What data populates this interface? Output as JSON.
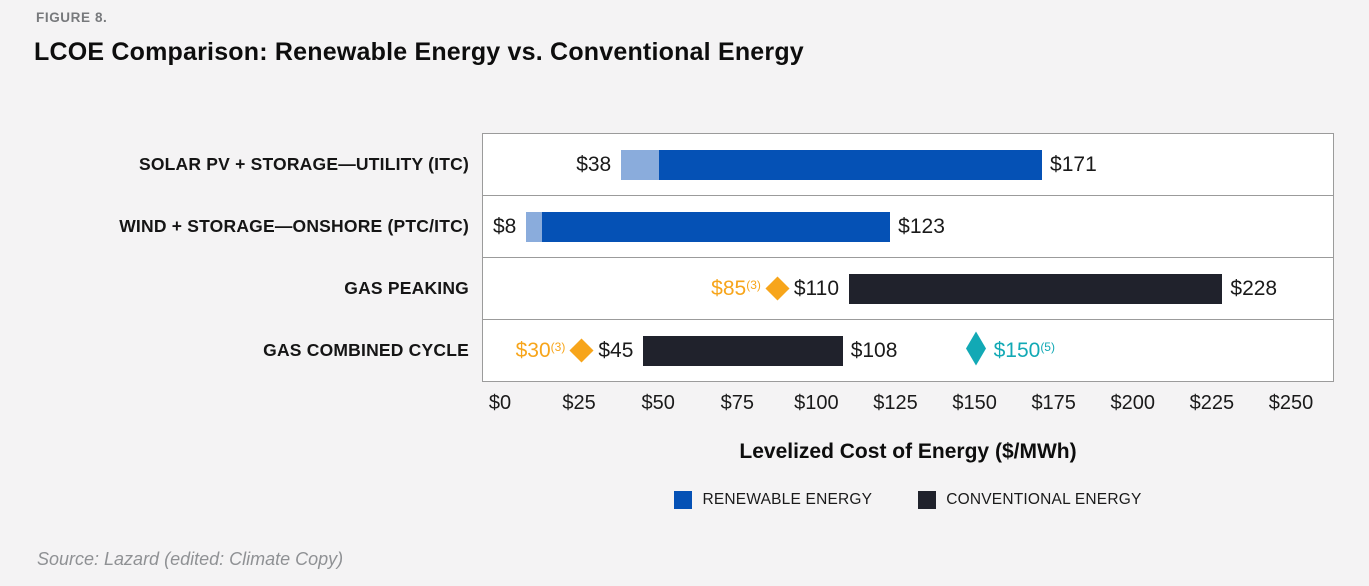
{
  "header": {
    "figure_label": "FIGURE 8.",
    "title": "LCOE Comparison: Renewable Energy vs. Conventional Energy"
  },
  "footer": {
    "source": "Source: Lazard (edited: Climate Copy)"
  },
  "colors": {
    "renewable": "#0551B5",
    "renewable_light": "#8AACDC",
    "conventional": "#20222C",
    "gold": "#F7A51B",
    "teal": "#12A9B5",
    "page_bg": "#F4F3F4"
  },
  "chart_data": {
    "type": "bar",
    "orientation": "horizontal",
    "xlabel": "Levelized Cost of Energy ($/MWh)",
    "xlim": [
      0,
      250
    ],
    "grid": false,
    "legend_position": "bottom",
    "x_ticks": [
      {
        "value": 0,
        "label": "$0"
      },
      {
        "value": 25,
        "label": "$25"
      },
      {
        "value": 50,
        "label": "$50"
      },
      {
        "value": 75,
        "label": "$75"
      },
      {
        "value": 100,
        "label": "$100"
      },
      {
        "value": 125,
        "label": "$125"
      },
      {
        "value": 150,
        "label": "$150"
      },
      {
        "value": 175,
        "label": "$175"
      },
      {
        "value": 200,
        "label": "$200"
      },
      {
        "value": 225,
        "label": "$225"
      },
      {
        "value": 250,
        "label": "$250"
      }
    ],
    "rows": [
      {
        "category": "SOLAR PV + STORAGE—UTILITY (ITC)",
        "series": "renewable",
        "low": 38,
        "light_to": 50,
        "high": 171,
        "low_label": "$38",
        "high_label": "$171",
        "markers": []
      },
      {
        "category": "WIND + STORAGE—ONSHORE (PTC/ITC)",
        "series": "renewable",
        "low": 8,
        "light_to": 13,
        "high": 123,
        "low_label": "$8",
        "high_label": "$123",
        "markers": []
      },
      {
        "category": "GAS PEAKING",
        "series": "conventional",
        "low": 110,
        "high": 228,
        "low_label": "$110",
        "high_label": "$228",
        "markers": [
          {
            "value": 85,
            "label": "$85",
            "sup": "(3)",
            "color": "gold"
          }
        ]
      },
      {
        "category": "GAS COMBINED CYCLE",
        "series": "conventional",
        "low": 45,
        "high": 108,
        "low_label": "$45",
        "high_label": "$108",
        "markers": [
          {
            "value": 30,
            "label": "$30",
            "sup": "(3)",
            "color": "gold"
          },
          {
            "value": 150,
            "label": "$150",
            "sup": "(5)",
            "color": "teal"
          }
        ]
      }
    ],
    "legend": [
      {
        "label": "RENEWABLE ENERGY",
        "color_key": "renewable"
      },
      {
        "label": "CONVENTIONAL ENERGY",
        "color_key": "conventional"
      }
    ]
  }
}
